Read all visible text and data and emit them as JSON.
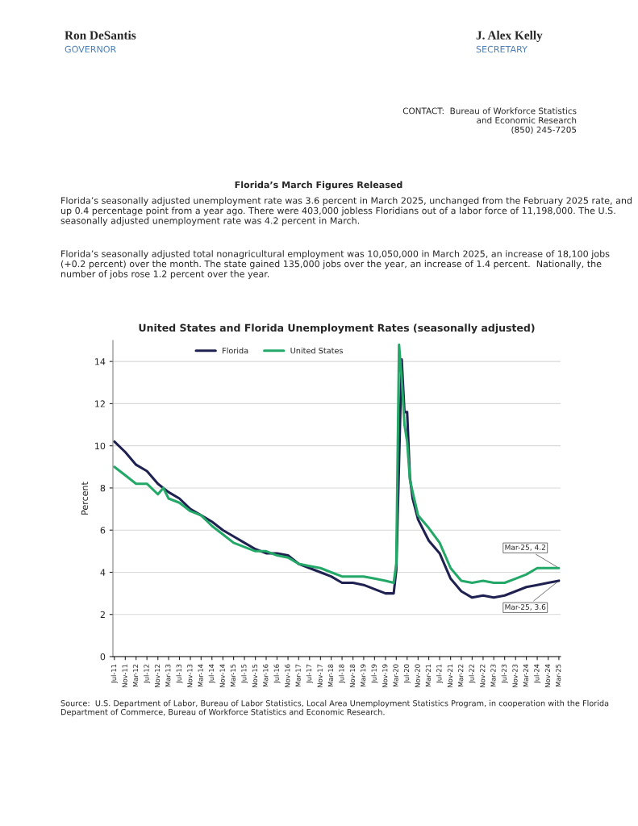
{
  "chart_data": {
    "type": "line",
    "title": "United States and Florida Unemployment Rates (seasonally adjusted)",
    "ylabel": "Percent",
    "annotations": [
      "Ron DeSantis",
      "GOVERNOR",
      "J. Alex Kelly",
      "SECRETARY",
      "CONTACT:  Bureau of Workforce Statistics\nand Economic Research\n(850) 245-7205",
      "Florida’s March Figures Released",
      "Florida’s seasonally adjusted unemployment rate was 3.6 percent in March 2025, unchanged from the February 2025 rate, and up 0.4 percentage point from a year ago. There were 403,000 jobless Floridians out of a labor force of 11,198,000. The U.S. seasonally adjusted unemployment rate was 4.2 percent in March.",
      "Florida’s seasonally adjusted total nonagricultural employment was 10,050,000 in March 2025, an increase of 18,100 jobs (+0.2 percent) over the month. The state gained 135,000 jobs over the year, an increase of 1.4 percent.  Nationally, the number of jobs rose 1.2 percent over the year.",
      "Source:  U.S. Department of Labor, Bureau of Labor Statistics, Local Area Unemployment Statistics Program, in cooperation with the Florida Department of Commerce, Bureau of Workforce Statistics and Economic Research.",
      {
        "text": "Mar-25, 4.2",
        "x": "2025-03",
        "y": 4.2
      },
      {
        "text": "Mar-25, 3.6",
        "x": "2025-03",
        "y": 3.6
      }
    ],
    "series": [
      {
        "name": "Florida",
        "color": "#1f2251",
        "x": [
          "2011-07",
          "2011-11",
          "2012-03",
          "2012-07",
          "2012-11",
          "2013-03",
          "2013-07",
          "2013-11",
          "2014-03",
          "2014-07",
          "2014-11",
          "2015-03",
          "2015-07",
          "2015-11",
          "2016-03",
          "2016-07",
          "2016-11",
          "2017-03",
          "2017-07",
          "2017-11",
          "2018-03",
          "2018-07",
          "2018-11",
          "2019-03",
          "2019-07",
          "2019-11",
          "2020-02",
          "2020-03",
          "2020-05",
          "2020-06",
          "2020-07",
          "2020-08",
          "2020-09",
          "2020-11",
          "2021-03",
          "2021-07",
          "2021-11",
          "2022-03",
          "2022-07",
          "2022-11",
          "2023-03",
          "2023-07",
          "2023-11",
          "2024-03",
          "2024-07",
          "2024-11",
          "2025-03"
        ],
        "values": [
          10.2,
          9.7,
          9.1,
          8.8,
          8.2,
          7.8,
          7.5,
          7.0,
          6.7,
          6.4,
          6.0,
          5.7,
          5.4,
          5.1,
          4.9,
          4.9,
          4.8,
          4.4,
          4.2,
          4.0,
          3.8,
          3.5,
          3.5,
          3.4,
          3.2,
          3.0,
          3.0,
          4.1,
          14.1,
          11.6,
          11.6,
          8.5,
          7.5,
          6.5,
          5.5,
          4.9,
          3.7,
          3.1,
          2.8,
          2.9,
          2.8,
          2.9,
          3.1,
          3.3,
          3.4,
          3.5,
          3.6
        ]
      },
      {
        "name": "United States",
        "color": "#23a868",
        "x": [
          "2011-07",
          "2011-11",
          "2012-03",
          "2012-07",
          "2012-11",
          "2013-01",
          "2013-03",
          "2013-07",
          "2013-11",
          "2014-03",
          "2014-07",
          "2014-11",
          "2015-03",
          "2015-07",
          "2015-11",
          "2016-03",
          "2016-07",
          "2016-11",
          "2017-03",
          "2017-07",
          "2017-11",
          "2018-03",
          "2018-07",
          "2018-11",
          "2019-03",
          "2019-07",
          "2019-11",
          "2020-02",
          "2020-03",
          "2020-04",
          "2020-05",
          "2020-06",
          "2020-07",
          "2020-08",
          "2020-09",
          "2020-11",
          "2021-03",
          "2021-07",
          "2021-11",
          "2022-03",
          "2022-07",
          "2022-11",
          "2023-03",
          "2023-07",
          "2023-11",
          "2024-03",
          "2024-07",
          "2024-11",
          "2025-03"
        ],
        "values": [
          9.0,
          8.6,
          8.2,
          8.2,
          7.7,
          8.0,
          7.5,
          7.3,
          6.9,
          6.7,
          6.2,
          5.8,
          5.4,
          5.2,
          5.0,
          5.0,
          4.8,
          4.7,
          4.4,
          4.3,
          4.2,
          4.0,
          3.8,
          3.8,
          3.8,
          3.7,
          3.6,
          3.5,
          4.4,
          14.8,
          13.2,
          11.0,
          10.2,
          8.4,
          7.8,
          6.7,
          6.1,
          5.4,
          4.2,
          3.6,
          3.5,
          3.6,
          3.5,
          3.5,
          3.7,
          3.9,
          4.2,
          4.2,
          4.2
        ]
      }
    ],
    "xlim": [
      "2011-06-15",
      "2025-03-20"
    ],
    "xticks": [
      {
        "value": "2011-07",
        "label": "Jul-11"
      },
      {
        "value": "2011-11",
        "label": "Nov-11"
      },
      {
        "value": "2012-03",
        "label": "Mar-12"
      },
      {
        "value": "2012-07",
        "label": "Jul-12"
      },
      {
        "value": "2012-11",
        "label": "Nov-12"
      },
      {
        "value": "2013-03",
        "label": "Mar-13"
      },
      {
        "value": "2013-07",
        "label": "Jul-13"
      },
      {
        "value": "2013-11",
        "label": "Nov-13"
      },
      {
        "value": "2014-03",
        "label": "Mar-14"
      },
      {
        "value": "2014-07",
        "label": "Jul-14"
      },
      {
        "value": "2014-11",
        "label": "Nov-14"
      },
      {
        "value": "2015-03",
        "label": "Mar-15"
      },
      {
        "value": "2015-07",
        "label": "Jul-15"
      },
      {
        "value": "2015-11",
        "label": "Nov-15"
      },
      {
        "value": "2016-03",
        "label": "Mar-16"
      },
      {
        "value": "2016-07",
        "label": "Jul-16"
      },
      {
        "value": "2016-11",
        "label": "Nov-16"
      },
      {
        "value": "2017-03",
        "label": "Mar-17"
      },
      {
        "value": "2017-07",
        "label": "Jul-17"
      },
      {
        "value": "2017-11",
        "label": "Nov-17"
      },
      {
        "value": "2018-03",
        "label": "Mar-18"
      },
      {
        "value": "2018-07",
        "label": "Jul-18"
      },
      {
        "value": "2018-11",
        "label": "Nov-18"
      },
      {
        "value": "2019-03",
        "label": "Mar-19"
      },
      {
        "value": "2019-07",
        "label": "Jul-19"
      },
      {
        "value": "2019-11",
        "label": "Nov-19"
      },
      {
        "value": "2020-03",
        "label": "Mar-20"
      },
      {
        "value": "2020-07",
        "label": "Jul-20"
      },
      {
        "value": "2020-11",
        "label": "Nov-20"
      },
      {
        "value": "2021-03",
        "label": "Mar-21"
      },
      {
        "value": "2021-07",
        "label": "Jul-21"
      },
      {
        "value": "2021-11",
        "label": "Nov-21"
      },
      {
        "value": "2022-03",
        "label": "Mar-22"
      },
      {
        "value": "2022-07",
        "label": "Jul-22"
      },
      {
        "value": "2022-11",
        "label": "Nov-22"
      },
      {
        "value": "2023-03",
        "label": "Mar-23"
      },
      {
        "value": "2023-07",
        "label": "Jul-23"
      },
      {
        "value": "2023-11",
        "label": "Nov-23"
      },
      {
        "value": "2024-03",
        "label": "Mar-24"
      },
      {
        "value": "2024-07",
        "label": "Jul-24"
      },
      {
        "value": "2024-11",
        "label": "Nov-24"
      },
      {
        "value": "2025-03",
        "label": "Mar-25"
      }
    ],
    "ylim": [
      0,
      15
    ],
    "yticks": [
      0,
      2,
      4,
      6,
      8,
      10,
      12,
      14
    ],
    "grid": "y",
    "legend": "top",
    "marker": "none",
    "line_style": "solid"
  }
}
